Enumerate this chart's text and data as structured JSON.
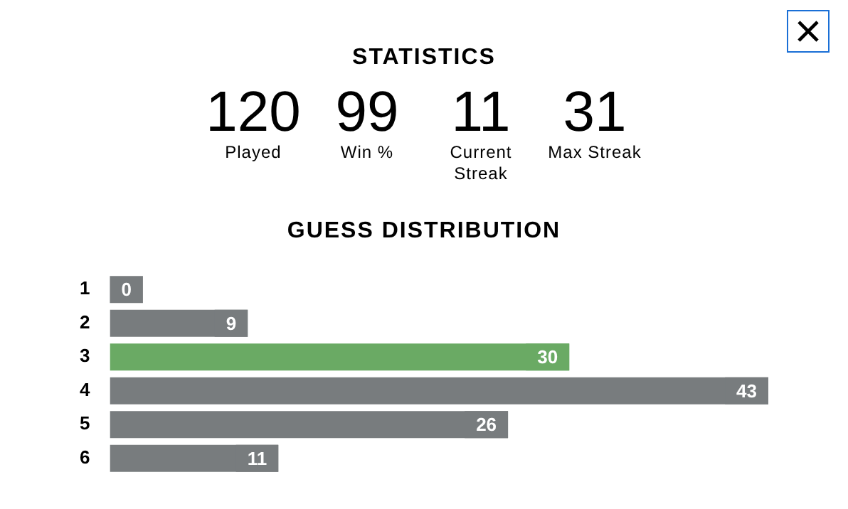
{
  "chart_data": [
    {
      "type": "other",
      "title": "STATISTICS",
      "annotations": [
        "120",
        "Played",
        "99",
        "Win %",
        "11",
        "Current Streak",
        "31",
        "Max Streak"
      ]
    },
    {
      "type": "bar",
      "orientation": "horizontal",
      "title": "GUESS DISTRIBUTION",
      "categories": [
        "1",
        "2",
        "3",
        "4",
        "5",
        "6"
      ],
      "values": [
        0,
        9,
        30,
        43,
        26,
        11
      ],
      "colors": [
        "#787c7e",
        "#787c7e",
        "#6aaa64",
        "#787c7e",
        "#787c7e",
        "#787c7e"
      ],
      "data_labels": true
    }
  ]
}
